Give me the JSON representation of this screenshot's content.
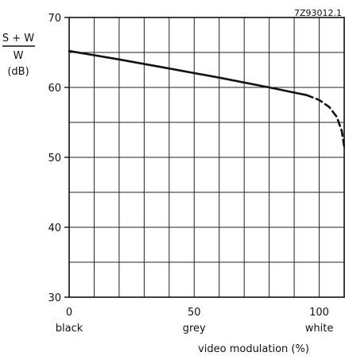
{
  "chart_data": {
    "type": "line",
    "figure_code": "7Z93012.1",
    "ylabel_top": "S + W",
    "ylabel_bottom": "W",
    "ylabel_unit": "(dB)",
    "xlabel": "video modulation  (%)",
    "xlim": [
      0,
      110
    ],
    "ylim": [
      30,
      70
    ],
    "xticks": [
      0,
      50,
      100
    ],
    "yticks": [
      30,
      40,
      50,
      60,
      70
    ],
    "x_category_labels": [
      {
        "x": 0,
        "label": "black"
      },
      {
        "x": 50,
        "label": "grey"
      },
      {
        "x": 100,
        "label": "white"
      }
    ],
    "grid": true,
    "series": [
      {
        "style": "solid",
        "x": [
          0,
          20,
          40,
          60,
          80,
          95
        ],
        "y": [
          65.2,
          64.0,
          62.7,
          61.4,
          60.0,
          58.9
        ]
      },
      {
        "style": "dashed",
        "x": [
          95,
          100,
          104,
          107,
          109,
          110
        ],
        "y": [
          58.9,
          58.2,
          57.2,
          55.8,
          53.8,
          51.5
        ]
      }
    ]
  }
}
